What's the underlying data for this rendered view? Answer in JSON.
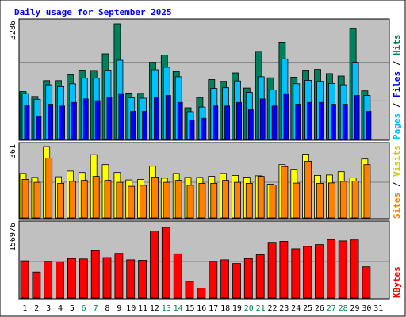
{
  "chart_data": {
    "type": "bar",
    "title": "Daily usage for September 2025",
    "days": [
      "1",
      "2",
      "3",
      "4",
      "5",
      "6",
      "7",
      "8",
      "9",
      "10",
      "11",
      "12",
      "13",
      "14",
      "15",
      "16",
      "17",
      "18",
      "19",
      "20",
      "21",
      "22",
      "23",
      "24",
      "25",
      "26",
      "27",
      "28",
      "29",
      "30",
      "31"
    ],
    "weekend_days": [
      "6",
      "7",
      "13",
      "14",
      "20",
      "21",
      "27",
      "28"
    ],
    "panels": [
      {
        "name": "hits-files-pages",
        "ymax": 3286,
        "ymax_label": "3286",
        "side_labels": [
          "Pages",
          "Files",
          "Hits"
        ],
        "series": [
          {
            "name": "Hits",
            "color": "#00805c",
            "values": [
              1360,
              1220,
              1670,
              1670,
              1840,
              1970,
              1960,
              2430,
              3286,
              1320,
              1310,
              2190,
              2400,
              1930,
              900,
              1190,
              1700,
              1650,
              1890,
              1460,
              2500,
              1750,
              2760,
              1770,
              1970,
              1990,
              1870,
              1800,
              3160,
              1380,
              null
            ]
          },
          {
            "name": "Files",
            "color": "#00c0ff",
            "values": [
              1300,
              1140,
              1550,
              1500,
              1580,
              1740,
              1740,
              1970,
              2250,
              1180,
              1170,
              1980,
              2050,
              1780,
              790,
              920,
              1450,
              1470,
              1660,
              1340,
              1780,
              1410,
              2290,
              1580,
              1680,
              1650,
              1590,
              1550,
              2190,
              1250,
              null
            ]
          },
          {
            "name": "Pages",
            "color": "#0000ff",
            "values": [
              960,
              650,
              1000,
              950,
              1050,
              1150,
              1100,
              1200,
              1300,
              800,
              800,
              1200,
              1250,
              1050,
              550,
              600,
              950,
              950,
              1050,
              850,
              1150,
              950,
              1300,
              1000,
              1050,
              1050,
              1000,
              1000,
              1250,
              800,
              null
            ]
          }
        ]
      },
      {
        "name": "visits-sites",
        "ymax": 361,
        "ymax_label": "361",
        "side_labels": [
          "Sites",
          "Visits"
        ],
        "series": [
          {
            "name": "Visits",
            "color": "#ffff00",
            "values": [
              225,
              205,
              361,
              208,
              237,
              230,
              320,
              270,
              230,
              192,
              195,
              262,
              201,
              225,
              205,
              205,
              210,
              225,
              215,
              206,
              213,
              170,
              270,
              246,
              323,
              215,
              217,
              234,
              202,
              298,
              null
            ]
          },
          {
            "name": "Sites",
            "color": "#ff8000",
            "values": [
              195,
              180,
              303,
              175,
              185,
              190,
              210,
              190,
              180,
              160,
              165,
              207,
              180,
              190,
              165,
              175,
              175,
              190,
              180,
              175,
              210,
              166,
              260,
              176,
              287,
              175,
              177,
              185,
              187,
              270,
              null
            ]
          }
        ]
      },
      {
        "name": "kbytes",
        "ymax": 156976,
        "ymax_label": "156976",
        "side_labels": [
          "KBytes"
        ],
        "series": [
          {
            "name": "KBytes",
            "color": "#ff0000",
            "values": [
              80000,
              56000,
              79000,
              78000,
              85000,
              84000,
              102000,
              87000,
              96000,
              82000,
              81000,
              144000,
              152000,
              95000,
              36000,
              21000,
              79000,
              82000,
              74000,
              85000,
              93000,
              120000,
              122000,
              106000,
              111000,
              115000,
              126000,
              123000,
              125000,
              67000,
              null
            ]
          }
        ]
      }
    ]
  }
}
